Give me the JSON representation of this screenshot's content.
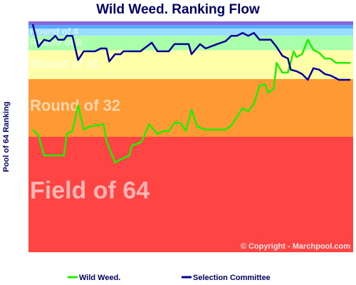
{
  "chart_data": {
    "type": "line",
    "title": "Wild Weed. Ranking Flow",
    "y_label": "Pool of 64 Ranking",
    "copyright": "© Copyright - Marchpool.com",
    "xlim": [
      -0.75,
      56.5
    ],
    "ylim": [
      64,
      0
    ],
    "bands": [
      {
        "from": 0,
        "to": 1,
        "color": "#8866dd"
      },
      {
        "from": 1,
        "to": 2,
        "color": "#55aaff"
      },
      {
        "label": "Round of 4",
        "from": 2,
        "to": 4,
        "color": "#99ddff",
        "label_size": 13
      },
      {
        "label": "Round of 8",
        "from": 4,
        "to": 8,
        "color": "#aaffaa",
        "label_size": 14
      },
      {
        "label": "Round of 16",
        "from": 8,
        "to": 16,
        "color": "#ffffaa",
        "label_size": 17
      },
      {
        "label": "Round of 32",
        "from": 16,
        "to": 32,
        "color": "#ff9933",
        "label_size": 22
      },
      {
        "label": "Field of 64",
        "from": 32,
        "to": 64,
        "color": "#ff4444",
        "label_size": 34
      }
    ],
    "series": [
      {
        "name": "Wild Weed.",
        "color": "#22ee00",
        "x": [
          0,
          1,
          2,
          3,
          4,
          5.5,
          6,
          7,
          8,
          9,
          10,
          11,
          12.5,
          13,
          14.5,
          16,
          17,
          17.5,
          19,
          19.5,
          20.5,
          22,
          23,
          24,
          25,
          26,
          27,
          28,
          29,
          30.5,
          32,
          34,
          35,
          36,
          37,
          38,
          39,
          40,
          41,
          41.5,
          42.5,
          43,
          44,
          45,
          46,
          46.5,
          47.5,
          48.5,
          49.5,
          50.5,
          51.5,
          52.5,
          53.5,
          56
        ],
        "values": [
          30,
          31.6,
          37.2,
          37.2,
          37.2,
          37.2,
          31.2,
          30.4,
          23.3,
          30,
          29.2,
          28.9,
          28.5,
          33.2,
          39.1,
          37.9,
          37.2,
          34.4,
          33.6,
          32.4,
          28.5,
          31.2,
          30.4,
          30.4,
          28.1,
          28.1,
          30.4,
          24.5,
          29.2,
          30,
          30,
          30,
          28.9,
          26.5,
          24.1,
          24.9,
          22.9,
          17.8,
          17.4,
          19.8,
          18.6,
          11.5,
          14.2,
          14.2,
          8.3,
          9.9,
          9.1,
          5.1,
          7.9,
          8.7,
          10.3,
          10.3,
          11.5,
          11.5
        ]
      },
      {
        "name": "Selection Committee",
        "color": "#000099",
        "x": [
          0,
          1,
          2,
          3,
          4,
          4.5,
          5.5,
          6,
          7,
          8,
          9,
          11,
          12,
          13,
          13.5,
          14.5,
          15.5,
          16,
          19,
          20,
          21,
          22,
          24,
          25,
          27.5,
          28,
          29.5,
          30.5,
          32.5,
          34,
          35,
          36,
          37,
          38,
          39,
          40,
          42,
          43,
          44,
          45,
          45.5,
          46.5,
          47.5,
          48.5,
          49.5,
          50.5,
          51.5,
          52.5,
          54,
          56
        ],
        "values": [
          0.8,
          7.1,
          5.1,
          5.5,
          4,
          5.1,
          5.1,
          4,
          4,
          10.7,
          8.3,
          8.3,
          7.5,
          7.5,
          11.1,
          9.1,
          9.1,
          8.3,
          8.3,
          7.1,
          5.9,
          8.3,
          8.3,
          6.3,
          6.3,
          9.1,
          6.3,
          7.5,
          6.3,
          5.5,
          4,
          4,
          3.2,
          4,
          3.2,
          5.1,
          5.1,
          7.1,
          9.5,
          10.3,
          13.4,
          13.8,
          14.6,
          16.2,
          13,
          13.4,
          14.6,
          15,
          16.2,
          16.2
        ]
      }
    ]
  }
}
